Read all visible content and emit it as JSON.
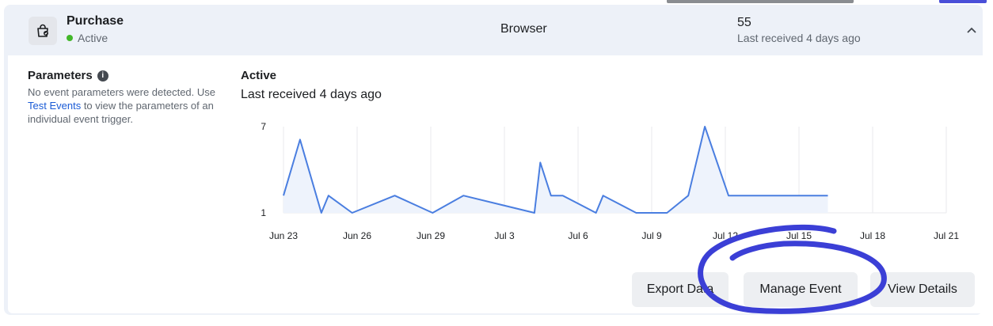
{
  "event": {
    "name": "Purchase",
    "status": "Active",
    "source": "Browser",
    "count": "55",
    "last_received": "Last received 4 days ago",
    "icon": "shopping-bag-icon"
  },
  "parameters": {
    "title": "Parameters",
    "desc_before": "No event parameters were detected. Use ",
    "link": "Test Events",
    "desc_after": " to view the parameters of an individual event trigger."
  },
  "chart_panel": {
    "status": "Active",
    "subtitle": "Last received 4 days ago"
  },
  "buttons": {
    "export": "Export Data",
    "manage": "Manage Event",
    "view": "View Details"
  },
  "colors": {
    "line": "#4a7ee0",
    "fill": "#eef3fc",
    "grid": "#e8eaee",
    "annotation": "#3b3fd6"
  },
  "chart_data": {
    "type": "area",
    "title": "",
    "xlabel": "",
    "ylabel": "",
    "x_ticks": [
      "Jun 23",
      "Jun 26",
      "Jun 29",
      "Jul 3",
      "Jul 6",
      "Jul 9",
      "Jul 12",
      "Jul 15",
      "Jul 18",
      "Jul 21"
    ],
    "y_ticks": [
      "1",
      "7"
    ],
    "ylim": [
      1,
      7
    ],
    "grid": true,
    "series": [
      {
        "values": [
          [
            0.0,
            2.2
          ],
          [
            0.7,
            6.1
          ],
          [
            1.6,
            1.0
          ],
          [
            1.9,
            2.2
          ],
          [
            2.9,
            1.0
          ],
          [
            4.7,
            2.2
          ],
          [
            6.3,
            1.0
          ],
          [
            7.6,
            2.2
          ],
          [
            10.6,
            1.0
          ],
          [
            10.85,
            4.5
          ],
          [
            11.3,
            2.2
          ],
          [
            11.8,
            2.2
          ],
          [
            13.2,
            1.0
          ],
          [
            13.5,
            2.2
          ],
          [
            14.9,
            1.0
          ],
          [
            16.2,
            1.0
          ],
          [
            17.1,
            2.2
          ],
          [
            17.8,
            7.0
          ],
          [
            18.8,
            2.2
          ],
          [
            23.0,
            2.2
          ]
        ]
      }
    ]
  }
}
